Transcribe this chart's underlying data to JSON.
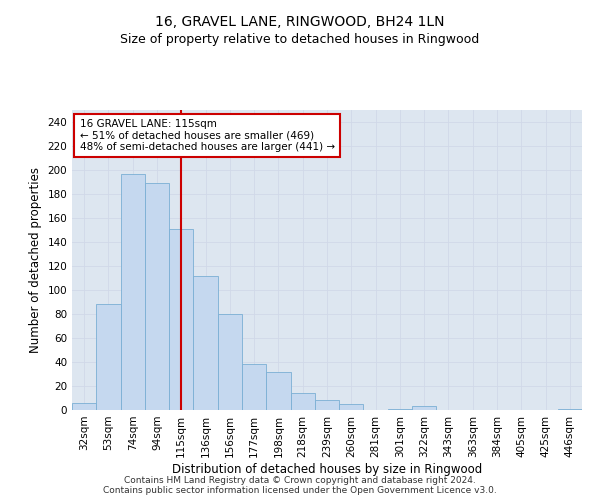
{
  "title": "16, GRAVEL LANE, RINGWOOD, BH24 1LN",
  "subtitle": "Size of property relative to detached houses in Ringwood",
  "xlabel": "Distribution of detached houses by size in Ringwood",
  "ylabel": "Number of detached properties",
  "categories": [
    "32sqm",
    "53sqm",
    "74sqm",
    "94sqm",
    "115sqm",
    "136sqm",
    "156sqm",
    "177sqm",
    "198sqm",
    "218sqm",
    "239sqm",
    "260sqm",
    "281sqm",
    "301sqm",
    "322sqm",
    "343sqm",
    "363sqm",
    "384sqm",
    "405sqm",
    "425sqm",
    "446sqm"
  ],
  "values": [
    6,
    88,
    197,
    189,
    151,
    112,
    80,
    38,
    32,
    14,
    8,
    5,
    0,
    1,
    3,
    0,
    0,
    0,
    0,
    0,
    1
  ],
  "bar_color": "#c5d8ef",
  "bar_edge_color": "#7aafd4",
  "vline_x": 4,
  "vline_color": "#cc0000",
  "annotation_text": "16 GRAVEL LANE: 115sqm\n← 51% of detached houses are smaller (469)\n48% of semi-detached houses are larger (441) →",
  "annotation_box_color": "#ffffff",
  "annotation_box_edge_color": "#cc0000",
  "ylim": [
    0,
    250
  ],
  "yticks": [
    0,
    20,
    40,
    60,
    80,
    100,
    120,
    140,
    160,
    180,
    200,
    220,
    240
  ],
  "grid_color": "#d0d8e8",
  "bg_color": "#dde6f0",
  "footer_line1": "Contains HM Land Registry data © Crown copyright and database right 2024.",
  "footer_line2": "Contains public sector information licensed under the Open Government Licence v3.0.",
  "title_fontsize": 10,
  "subtitle_fontsize": 9,
  "axis_label_fontsize": 8.5,
  "tick_fontsize": 7.5,
  "annotation_fontsize": 7.5,
  "footer_fontsize": 6.5
}
